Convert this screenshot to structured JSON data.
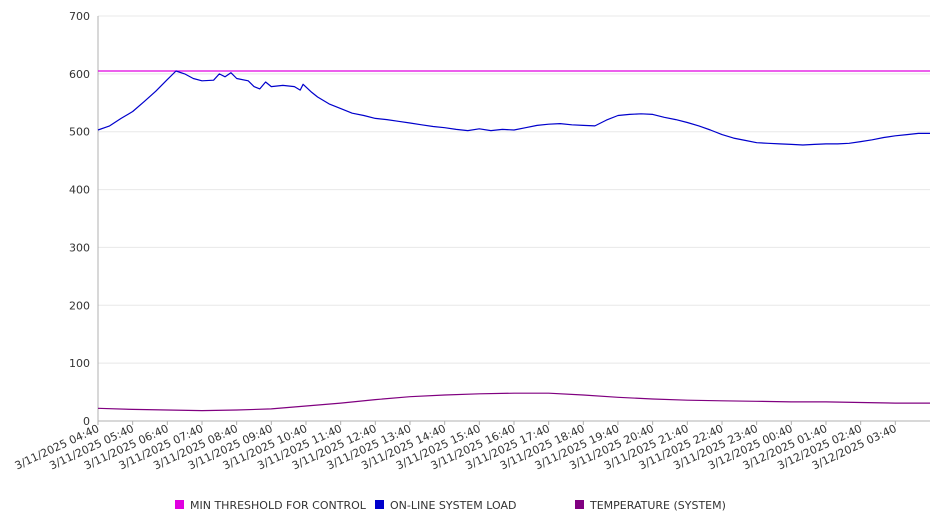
{
  "chart_data": {
    "type": "line",
    "title": "",
    "xlabel": "",
    "ylabel": "",
    "ylim": [
      0,
      700
    ],
    "y_ticks": [
      0,
      100,
      200,
      300,
      400,
      500,
      600,
      700
    ],
    "grid": true,
    "legend_position": "bottom",
    "x_ticks": [
      "3/11/2025 04:40",
      "3/11/2025 05:40",
      "3/11/2025 06:40",
      "3/11/2025 07:40",
      "3/11/2025 08:40",
      "3/11/2025 09:40",
      "3/11/2025 10:40",
      "3/11/2025 11:40",
      "3/11/2025 12:40",
      "3/11/2025 13:40",
      "3/11/2025 14:40",
      "3/11/2025 15:40",
      "3/11/2025 16:40",
      "3/11/2025 17:40",
      "3/11/2025 18:40",
      "3/11/2025 19:40",
      "3/11/2025 20:40",
      "3/11/2025 21:40",
      "3/11/2025 22:40",
      "3/11/2025 23:40",
      "3/12/2025 00:40",
      "3/12/2025 01:40",
      "3/12/2025 02:40",
      "3/12/2025 03:40"
    ],
    "x_range": [
      "3/11/2025 04:40",
      "3/12/2025 04:40"
    ],
    "series": [
      {
        "name": "MIN THRESHOLD FOR CONTROL",
        "color": "#e000e0",
        "points": [
          [
            "3/11/2025 04:40",
            605
          ],
          [
            "3/12/2025 04:40",
            605
          ]
        ]
      },
      {
        "name": "ON-LINE SYSTEM LOAD",
        "color": "#0000cc",
        "points": [
          [
            "3/11/2025 04:40",
            503
          ],
          [
            "3/11/2025 05:00",
            510
          ],
          [
            "3/11/2025 05:20",
            523
          ],
          [
            "3/11/2025 05:40",
            535
          ],
          [
            "3/11/2025 06:00",
            552
          ],
          [
            "3/11/2025 06:20",
            570
          ],
          [
            "3/11/2025 06:40",
            590
          ],
          [
            "3/11/2025 06:55",
            605
          ],
          [
            "3/11/2025 07:10",
            600
          ],
          [
            "3/11/2025 07:25",
            592
          ],
          [
            "3/11/2025 07:40",
            588
          ],
          [
            "3/11/2025 08:00",
            589
          ],
          [
            "3/11/2025 08:10",
            600
          ],
          [
            "3/11/2025 08:20",
            595
          ],
          [
            "3/11/2025 08:30",
            602
          ],
          [
            "3/11/2025 08:40",
            592
          ],
          [
            "3/11/2025 09:00",
            588
          ],
          [
            "3/11/2025 09:10",
            578
          ],
          [
            "3/11/2025 09:20",
            574
          ],
          [
            "3/11/2025 09:30",
            586
          ],
          [
            "3/11/2025 09:40",
            578
          ],
          [
            "3/11/2025 10:00",
            580
          ],
          [
            "3/11/2025 10:20",
            578
          ],
          [
            "3/11/2025 10:30",
            572
          ],
          [
            "3/11/2025 10:35",
            582
          ],
          [
            "3/11/2025 10:50",
            568
          ],
          [
            "3/11/2025 11:00",
            560
          ],
          [
            "3/11/2025 11:20",
            548
          ],
          [
            "3/11/2025 11:40",
            540
          ],
          [
            "3/11/2025 12:00",
            532
          ],
          [
            "3/11/2025 12:20",
            528
          ],
          [
            "3/11/2025 12:40",
            523
          ],
          [
            "3/11/2025 13:00",
            521
          ],
          [
            "3/11/2025 13:20",
            518
          ],
          [
            "3/11/2025 13:40",
            515
          ],
          [
            "3/11/2025 14:00",
            512
          ],
          [
            "3/11/2025 14:20",
            509
          ],
          [
            "3/11/2025 14:40",
            507
          ],
          [
            "3/11/2025 15:00",
            504
          ],
          [
            "3/11/2025 15:20",
            502
          ],
          [
            "3/11/2025 15:40",
            505
          ],
          [
            "3/11/2025 16:00",
            502
          ],
          [
            "3/11/2025 16:20",
            504
          ],
          [
            "3/11/2025 16:40",
            503
          ],
          [
            "3/11/2025 17:00",
            507
          ],
          [
            "3/11/2025 17:20",
            511
          ],
          [
            "3/11/2025 17:40",
            513
          ],
          [
            "3/11/2025 18:00",
            514
          ],
          [
            "3/11/2025 18:20",
            512
          ],
          [
            "3/11/2025 18:40",
            511
          ],
          [
            "3/11/2025 19:00",
            510
          ],
          [
            "3/11/2025 19:20",
            520
          ],
          [
            "3/11/2025 19:40",
            528
          ],
          [
            "3/11/2025 20:00",
            530
          ],
          [
            "3/11/2025 20:20",
            531
          ],
          [
            "3/11/2025 20:40",
            530
          ],
          [
            "3/11/2025 21:00",
            525
          ],
          [
            "3/11/2025 21:20",
            521
          ],
          [
            "3/11/2025 21:40",
            516
          ],
          [
            "3/11/2025 22:00",
            510
          ],
          [
            "3/11/2025 22:20",
            503
          ],
          [
            "3/11/2025 22:40",
            495
          ],
          [
            "3/11/2025 23:00",
            489
          ],
          [
            "3/11/2025 23:20",
            485
          ],
          [
            "3/11/2025 23:40",
            481
          ],
          [
            "3/12/2025 00:00",
            480
          ],
          [
            "3/12/2025 00:20",
            479
          ],
          [
            "3/12/2025 00:40",
            478
          ],
          [
            "3/12/2025 01:00",
            477
          ],
          [
            "3/12/2025 01:20",
            478
          ],
          [
            "3/12/2025 01:40",
            479
          ],
          [
            "3/12/2025 02:00",
            479
          ],
          [
            "3/12/2025 02:20",
            480
          ],
          [
            "3/12/2025 02:40",
            483
          ],
          [
            "3/12/2025 03:00",
            486
          ],
          [
            "3/12/2025 03:20",
            490
          ],
          [
            "3/12/2025 03:40",
            493
          ],
          [
            "3/12/2025 04:00",
            495
          ],
          [
            "3/12/2025 04:20",
            497
          ],
          [
            "3/12/2025 04:40",
            497
          ]
        ]
      },
      {
        "name": "TEMPERATURE (SYSTEM)",
        "color": "#800080",
        "points": [
          [
            "3/11/2025 04:40",
            22
          ],
          [
            "3/11/2025 05:40",
            20
          ],
          [
            "3/11/2025 06:40",
            19
          ],
          [
            "3/11/2025 07:40",
            18
          ],
          [
            "3/11/2025 08:40",
            19
          ],
          [
            "3/11/2025 09:40",
            21
          ],
          [
            "3/11/2025 10:40",
            26
          ],
          [
            "3/11/2025 11:40",
            31
          ],
          [
            "3/11/2025 12:40",
            37
          ],
          [
            "3/11/2025 13:40",
            42
          ],
          [
            "3/11/2025 14:40",
            45
          ],
          [
            "3/11/2025 15:40",
            47
          ],
          [
            "3/11/2025 16:40",
            48
          ],
          [
            "3/11/2025 17:40",
            48
          ],
          [
            "3/11/2025 18:40",
            45
          ],
          [
            "3/11/2025 19:40",
            41
          ],
          [
            "3/11/2025 20:40",
            38
          ],
          [
            "3/11/2025 21:40",
            36
          ],
          [
            "3/11/2025 22:40",
            35
          ],
          [
            "3/11/2025 23:40",
            34
          ],
          [
            "3/12/2025 00:40",
            33
          ],
          [
            "3/12/2025 01:40",
            33
          ],
          [
            "3/12/2025 02:40",
            32
          ],
          [
            "3/12/2025 03:40",
            31
          ],
          [
            "3/12/2025 04:40",
            31
          ]
        ]
      }
    ]
  }
}
